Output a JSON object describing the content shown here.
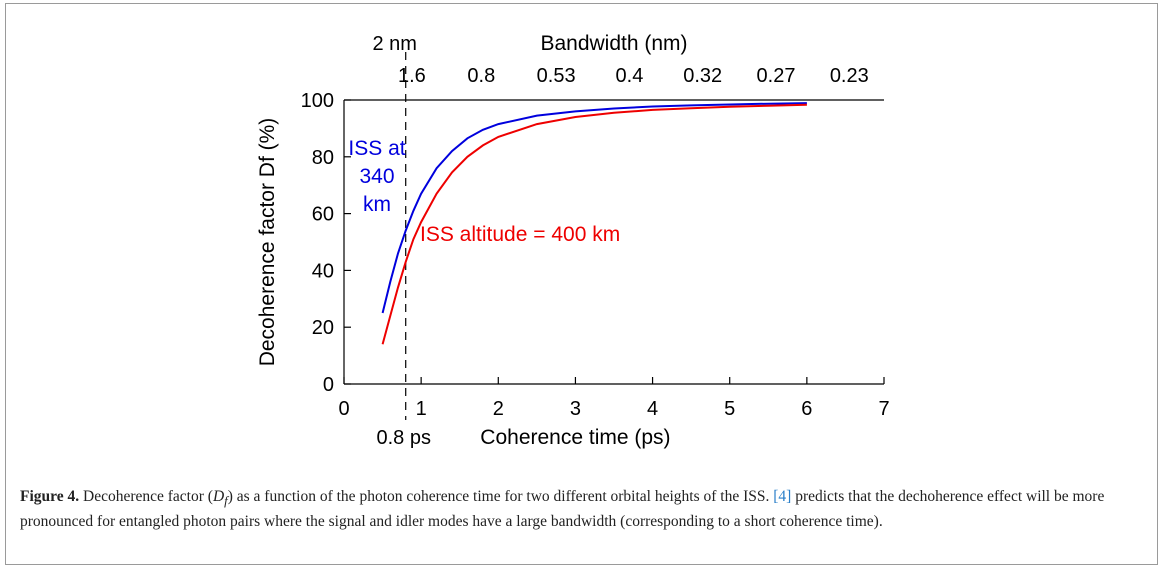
{
  "chart_data": {
    "type": "line",
    "xlabel": "Coherence time (ps)",
    "ylabel": "Decoherence  factor Df (%)",
    "xlim": [
      0,
      7
    ],
    "ylim": [
      0,
      100
    ],
    "x_ticks": [
      "0",
      "1",
      "2",
      "3",
      "4",
      "5",
      "6",
      "7"
    ],
    "y_ticks": [
      "0",
      "20",
      "40",
      "60",
      "80",
      "100"
    ],
    "top_axis": {
      "label": "Bandwidth (nm)",
      "tick_labels": [
        "1.6",
        "0.8",
        "0.53",
        "0.4",
        "0.32",
        "0.27",
        "0.23"
      ],
      "tick_positions_ps": [
        0.88,
        1.78,
        2.75,
        3.7,
        4.65,
        5.6,
        6.55
      ]
    },
    "marker_line": {
      "x": 0.8,
      "top_label": "2 nm",
      "bottom_label": "0.8 ps"
    },
    "grid": false,
    "series": [
      {
        "name": "ISS at 340 km",
        "label_lines": [
          "ISS at",
          "340",
          "km"
        ],
        "color": "#0000dd",
        "x": [
          0.5,
          0.6,
          0.7,
          0.8,
          0.9,
          1.0,
          1.2,
          1.4,
          1.6,
          1.8,
          2.0,
          2.5,
          3.0,
          3.5,
          4.0,
          4.5,
          5.0,
          5.5,
          6.0
        ],
        "y": [
          25,
          36,
          46,
          54,
          61,
          67,
          76,
          82,
          86.5,
          89.5,
          91.5,
          94.5,
          96.0,
          97.0,
          97.7,
          98.1,
          98.4,
          98.7,
          98.9
        ]
      },
      {
        "name": "ISS altitude = 400 km",
        "label_lines": [
          "ISS altitude = 400 km"
        ],
        "color": "#ee0000",
        "x": [
          0.5,
          0.6,
          0.7,
          0.8,
          0.9,
          1.0,
          1.2,
          1.4,
          1.6,
          1.8,
          2.0,
          2.5,
          3.0,
          3.5,
          4.0,
          4.5,
          5.0,
          5.5,
          6.0
        ],
        "y": [
          14,
          24,
          34,
          43,
          51,
          57,
          67,
          74.5,
          80,
          84,
          87,
          91.5,
          94.0,
          95.5,
          96.5,
          97.1,
          97.6,
          98.0,
          98.3
        ]
      }
    ]
  },
  "caption": {
    "label": "Figure 4.",
    "text_1": " Decoherence factor (",
    "df_symbol": "D",
    "df_sub": "f",
    "text_2": ") as a function of the photon coherence time for two different orbital heights of the ISS. ",
    "ref": "[4]",
    "text_3": " predicts that the dechoherence effect will be more pronounced for entangled photon pairs where the signal and idler modes have a large bandwidth (corresponding to a short coherence time)."
  },
  "colors": {
    "blue_series": "#0000dd",
    "red_series": "#ee0000",
    "reference_link": "#2a7fc9"
  }
}
